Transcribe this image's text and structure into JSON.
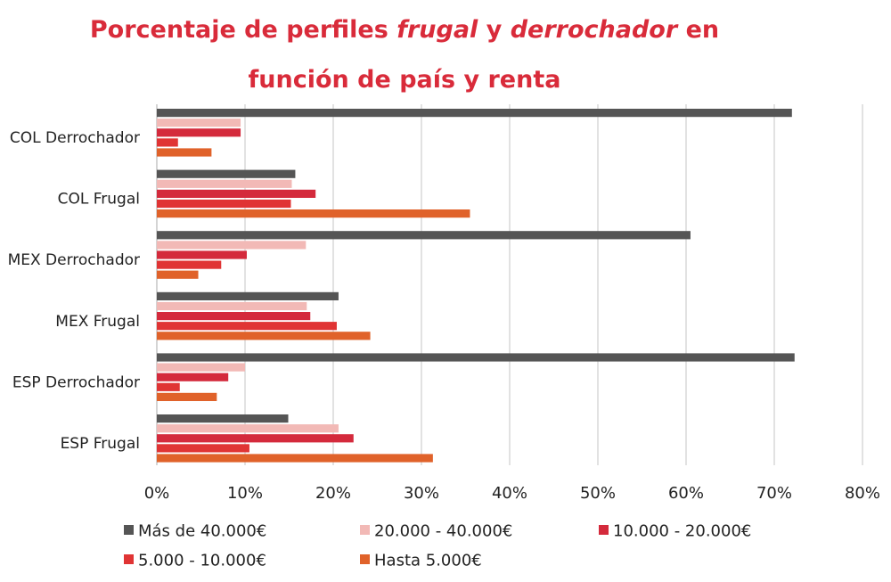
{
  "chart_data": {
    "type": "bar",
    "orientation": "horizontal",
    "title": {
      "line1": [
        {
          "text": "Porcentaje de perfiles ",
          "italic": false
        },
        {
          "text": "frugal",
          "italic": true
        },
        {
          "text": " y ",
          "italic": false
        },
        {
          "text": "derrochador",
          "italic": true
        },
        {
          "text": " en",
          "italic": false
        }
      ],
      "line2": "función de país y renta"
    },
    "categories": [
      "COL Derrochador",
      "COL Frugal",
      "MEX Derrochador",
      "MEX Frugal",
      "ESP Derrochador",
      "ESP Frugal"
    ],
    "series": [
      {
        "name": "Más de 40.000€",
        "color": "#555555",
        "values": [
          72.0,
          15.7,
          60.5,
          20.6,
          72.3,
          14.9
        ]
      },
      {
        "name": "20.000 - 40.000€",
        "color": "#f2b9b6",
        "values": [
          9.5,
          15.3,
          16.9,
          17.0,
          10.0,
          20.6
        ]
      },
      {
        "name": "10.000 - 20.000€",
        "color": "#d42a3c",
        "values": [
          9.5,
          18.0,
          10.2,
          17.4,
          8.1,
          22.3
        ]
      },
      {
        "name": "5.000 - 10.000€",
        "color": "#e03434",
        "values": [
          2.4,
          15.2,
          7.3,
          20.4,
          2.6,
          10.5
        ]
      },
      {
        "name": "Hasta 5.000€",
        "color": "#e0622a",
        "values": [
          6.2,
          35.5,
          4.7,
          24.2,
          6.8,
          31.3
        ]
      }
    ],
    "xlim": [
      0,
      80
    ],
    "xticks": [
      0,
      10,
      20,
      30,
      40,
      50,
      60,
      70,
      80
    ],
    "tick_suffix": "%",
    "grid": true,
    "legend_position": "bottom"
  }
}
